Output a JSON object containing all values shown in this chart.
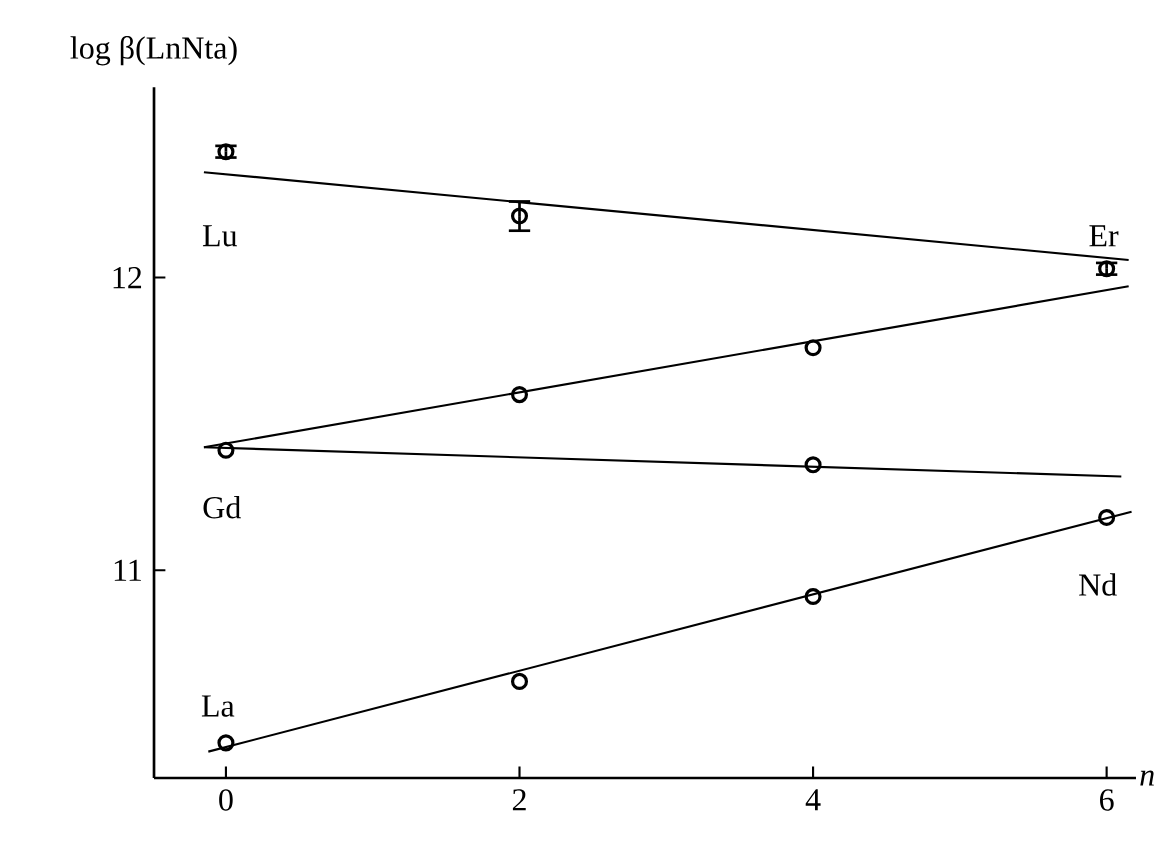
{
  "chart_data": {
    "type": "scatter",
    "xlabel": "*n*",
    "ylabel": "log β(LnNta)",
    "xlim": [
      -0.49,
      6.2
    ],
    "ylim": [
      10.29,
      12.65
    ],
    "xticks": [
      0,
      2,
      4,
      6
    ],
    "yticks": [
      11,
      12
    ],
    "series": [
      {
        "marker": "circle",
        "color": "#000000",
        "x": [
          0,
          2,
          6
        ],
        "values": [
          12.43,
          12.21,
          12.03
        ],
        "errors": [
          0.02,
          0.05,
          0.02
        ]
      },
      {
        "type": "line",
        "marker": "none",
        "color": "#000000",
        "x": [
          -0.15,
          6.15
        ],
        "values": [
          12.36,
          12.06
        ]
      },
      {
        "marker": "circle",
        "color": "#000000",
        "x": [
          0,
          2,
          4
        ],
        "values": [
          11.41,
          11.6,
          11.76
        ]
      },
      {
        "type": "line",
        "marker": "none",
        "color": "#000000",
        "x": [
          -0.15,
          6.15
        ],
        "values": [
          11.42,
          11.97
        ]
      },
      {
        "marker": "circle",
        "color": "#000000",
        "x": [
          4
        ],
        "values": [
          11.36
        ]
      },
      {
        "type": "line",
        "marker": "none",
        "color": "#000000",
        "x": [
          -0.15,
          6.1
        ],
        "values": [
          11.42,
          11.32
        ]
      },
      {
        "marker": "circle",
        "color": "#000000",
        "x": [
          0,
          2,
          4,
          6
        ],
        "values": [
          10.41,
          10.62,
          10.91,
          11.18
        ]
      },
      {
        "type": "line",
        "marker": "none",
        "color": "#000000",
        "x": [
          -0.12,
          6.17
        ],
        "values": [
          10.38,
          11.2
        ]
      }
    ],
    "annotations": [
      "Lu",
      "Er",
      "Gd",
      "Nd",
      "La"
    ]
  }
}
